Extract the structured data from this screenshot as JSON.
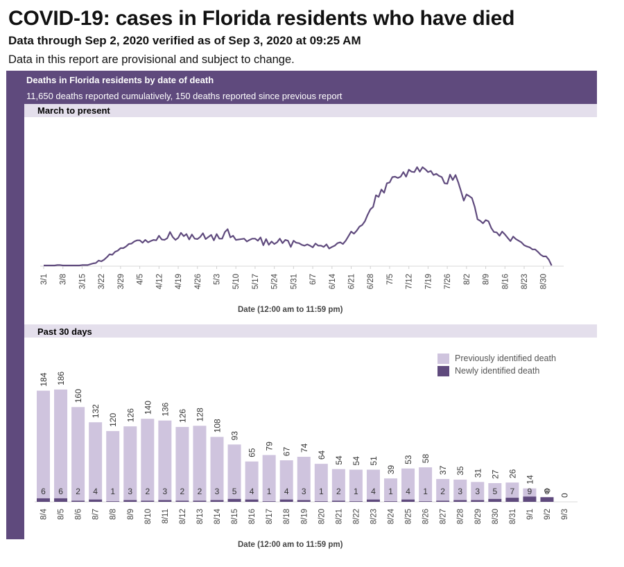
{
  "header": {
    "title": "COVID-19: cases in Florida residents who have died",
    "subtitle": "Data through Sep 2, 2020 verified as of Sep 3, 2020 at 09:25 AM",
    "note": "Data in this report are provisional and subject to change."
  },
  "panel": {
    "title": "Deaths in Florida residents by date of death",
    "summary": "11,650 deaths reported cumulatively, 150 deaths reported since previous report"
  },
  "colors": {
    "primary": "#5f4a7d",
    "line": "#5f4a7d",
    "previous": "#cfc4de",
    "newly": "#5f4a7d",
    "section": "#e4dfec"
  },
  "chart_data": [
    {
      "type": "line",
      "section": "March to present",
      "xlabel": "Date (12:00 am to 11:59 pm)",
      "ylabel": "",
      "tick_labels": [
        "3/1",
        "3/8",
        "3/15",
        "3/22",
        "3/29",
        "4/5",
        "4/12",
        "4/19",
        "4/26",
        "5/3",
        "5/10",
        "5/17",
        "5/24",
        "5/31",
        "6/7",
        "6/14",
        "6/21",
        "6/28",
        "7/5",
        "7/12",
        "7/19",
        "7/26",
        "8/2",
        "8/9",
        "8/16",
        "8/23",
        "8/30"
      ],
      "start_date": "3/1",
      "ylim": [
        0,
        240
      ],
      "values": [
        0,
        0,
        0,
        0,
        0,
        1,
        1,
        0,
        0,
        0,
        0,
        0,
        0,
        0,
        1,
        1,
        1,
        3,
        5,
        6,
        12,
        10,
        14,
        20,
        27,
        26,
        33,
        36,
        42,
        42,
        46,
        52,
        53,
        58,
        61,
        61,
        55,
        62,
        56,
        59,
        62,
        61,
        72,
        63,
        62,
        66,
        81,
        69,
        62,
        67,
        79,
        71,
        76,
        63,
        75,
        65,
        64,
        69,
        78,
        64,
        69,
        74,
        61,
        76,
        65,
        65,
        81,
        88,
        68,
        72,
        62,
        63,
        64,
        65,
        58,
        62,
        65,
        65,
        60,
        68,
        49,
        64,
        50,
        58,
        52,
        56,
        65,
        54,
        62,
        60,
        45,
        60,
        55,
        54,
        50,
        48,
        51,
        48,
        44,
        53,
        48,
        48,
        45,
        51,
        41,
        45,
        48,
        54,
        56,
        52,
        60,
        71,
        82,
        77,
        84,
        94,
        98,
        107,
        123,
        136,
        142,
        170,
        166,
        184,
        176,
        199,
        201,
        214,
        215,
        212,
        215,
        226,
        215,
        232,
        227,
        226,
        238,
        227,
        238,
        233,
        226,
        229,
        219,
        222,
        217,
        214,
        199,
        198,
        220,
        207,
        219,
        201,
        180,
        157,
        172,
        168,
        163,
        142,
        112,
        108,
        102,
        110,
        107,
        91,
        81,
        80,
        72,
        82,
        75,
        67,
        59,
        70,
        64,
        60,
        56,
        49,
        46,
        44,
        39,
        39,
        33,
        26,
        22,
        22,
        14,
        0
      ]
    },
    {
      "type": "bar",
      "section": "Past 30 days",
      "xlabel": "Date (12:00 am to 11:59 pm)",
      "ylabel": "",
      "ylim": [
        0,
        200
      ],
      "legend": [
        "Previously identified death",
        "Newly identified death"
      ],
      "categories": [
        "8/4",
        "8/5",
        "8/6",
        "8/7",
        "8/8",
        "8/9",
        "8/10",
        "8/11",
        "8/12",
        "8/13",
        "8/14",
        "8/15",
        "8/16",
        "8/17",
        "8/18",
        "8/19",
        "8/20",
        "8/21",
        "8/22",
        "8/23",
        "8/24",
        "8/25",
        "8/26",
        "8/27",
        "8/28",
        "8/29",
        "8/30",
        "8/31",
        "9/1",
        "9/2",
        "9/3"
      ],
      "series": [
        {
          "name": "Previously identified death",
          "values": [
            184,
            186,
            160,
            132,
            120,
            126,
            140,
            136,
            126,
            128,
            108,
            93,
            65,
            79,
            67,
            74,
            64,
            54,
            54,
            51,
            39,
            53,
            58,
            37,
            35,
            31,
            27,
            26,
            14,
            0,
            0
          ]
        },
        {
          "name": "Newly identified death",
          "values": [
            6,
            6,
            2,
            4,
            1,
            3,
            2,
            3,
            2,
            2,
            3,
            5,
            4,
            1,
            4,
            3,
            1,
            2,
            1,
            4,
            1,
            4,
            1,
            2,
            3,
            3,
            5,
            7,
            9,
            8,
            0
          ]
        }
      ]
    }
  ]
}
